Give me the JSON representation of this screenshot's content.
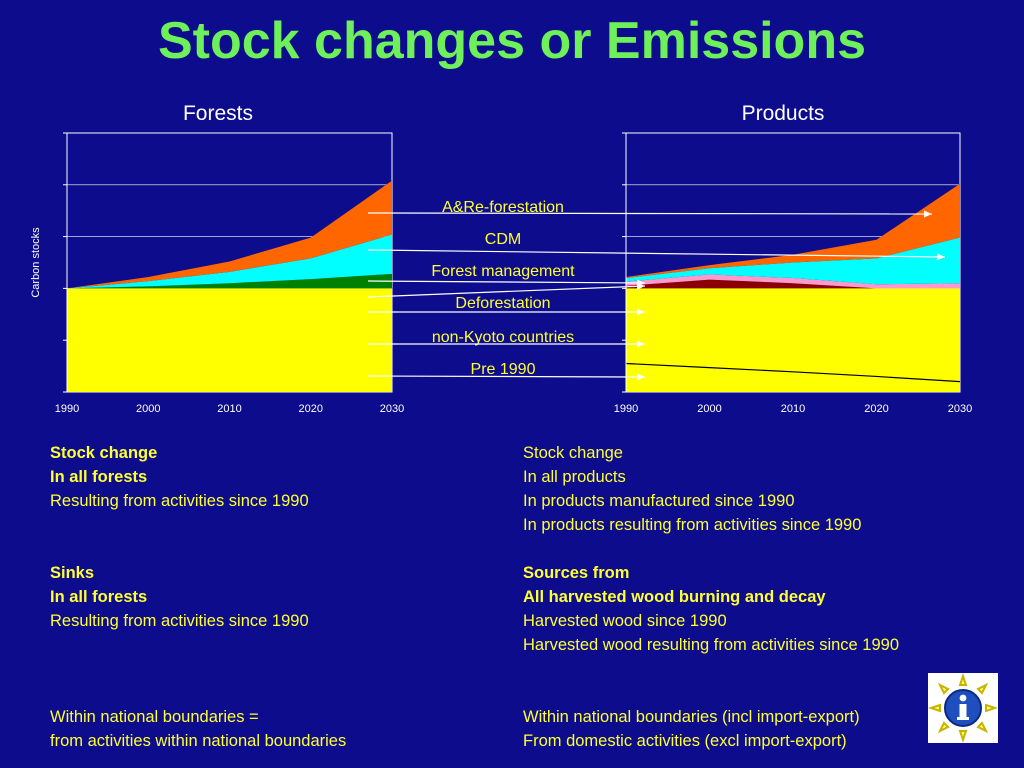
{
  "title": "Stock changes or Emissions",
  "colors": {
    "background": "#0c0c8c",
    "title": "#6ef05a",
    "highlight_text": "#ffff33",
    "pre1990": "#ffff00",
    "forest_management": "#008000",
    "cdm": "#00ffff",
    "ar_forestation": "#ff6600",
    "deforestation": "#8b0000",
    "non_kyoto": "#ff99cc"
  },
  "legend_items": [
    "A&Re-forestation",
    "CDM",
    "Forest management",
    "Deforestation",
    "non-Kyoto countries",
    "Pre 1990"
  ],
  "chart_data": [
    {
      "type": "area",
      "title": "Forests",
      "ylabel": "Carbon stocks",
      "x": [
        1990,
        2000,
        2010,
        2020,
        2030
      ],
      "xlim": [
        1990,
        2030
      ],
      "ylim": [
        0,
        5
      ],
      "stacked": true,
      "series": [
        {
          "name": "Pre 1990",
          "values": [
            2.0,
            2.0,
            2.0,
            2.0,
            2.0
          ]
        },
        {
          "name": "Forest management",
          "values": [
            0.0,
            0.04,
            0.1,
            0.18,
            0.28
          ]
        },
        {
          "name": "CDM",
          "values": [
            0.0,
            0.1,
            0.22,
            0.4,
            0.76
          ]
        },
        {
          "name": "A&Re-forestation",
          "values": [
            0.0,
            0.08,
            0.2,
            0.4,
            1.04
          ]
        }
      ]
    },
    {
      "type": "area",
      "title": "Products",
      "x": [
        1990,
        2000,
        2010,
        2020,
        2030
      ],
      "xlim": [
        1990,
        2030
      ],
      "ylim": [
        0,
        5
      ],
      "stacked": true,
      "pre1990_decay_line": [
        0.55,
        0.47,
        0.39,
        0.3,
        0.2
      ],
      "series": [
        {
          "name": "Pre 1990",
          "values": [
            2.0,
            2.0,
            2.0,
            2.0,
            2.0
          ]
        },
        {
          "name": "Deforestation",
          "values": [
            0.05,
            0.17,
            0.1,
            0.0,
            0.0
          ]
        },
        {
          "name": "non-Kyoto countries",
          "values": [
            0.08,
            0.1,
            0.1,
            0.08,
            0.1
          ]
        },
        {
          "name": "CDM",
          "values": [
            0.07,
            0.12,
            0.3,
            0.5,
            0.88
          ]
        },
        {
          "name": "A&Re-forestation",
          "values": [
            0.02,
            0.06,
            0.15,
            0.36,
            1.04
          ]
        }
      ]
    }
  ],
  "left_text": {
    "block1": [
      "Stock change",
      "In all forests",
      "Resulting from activities since 1990"
    ],
    "block2": [
      "Sinks",
      "In all forests",
      "Resulting from activities since 1990"
    ],
    "block3": [
      "Within national boundaries =",
      "from activities within national boundaries"
    ]
  },
  "right_text": {
    "block1": [
      "Stock change",
      "In all products",
      "In products manufactured since 1990",
      "In products resulting from activities since 1990"
    ],
    "block2": [
      "Sources from",
      "All harvested wood burning and decay",
      "Harvested wood since 1990",
      "Harvested wood resulting from activities since 1990"
    ],
    "block3": [
      "Within national boundaries (incl import-export)",
      "From domestic activities (excl import-export)"
    ]
  },
  "info_icon": "info-icon"
}
